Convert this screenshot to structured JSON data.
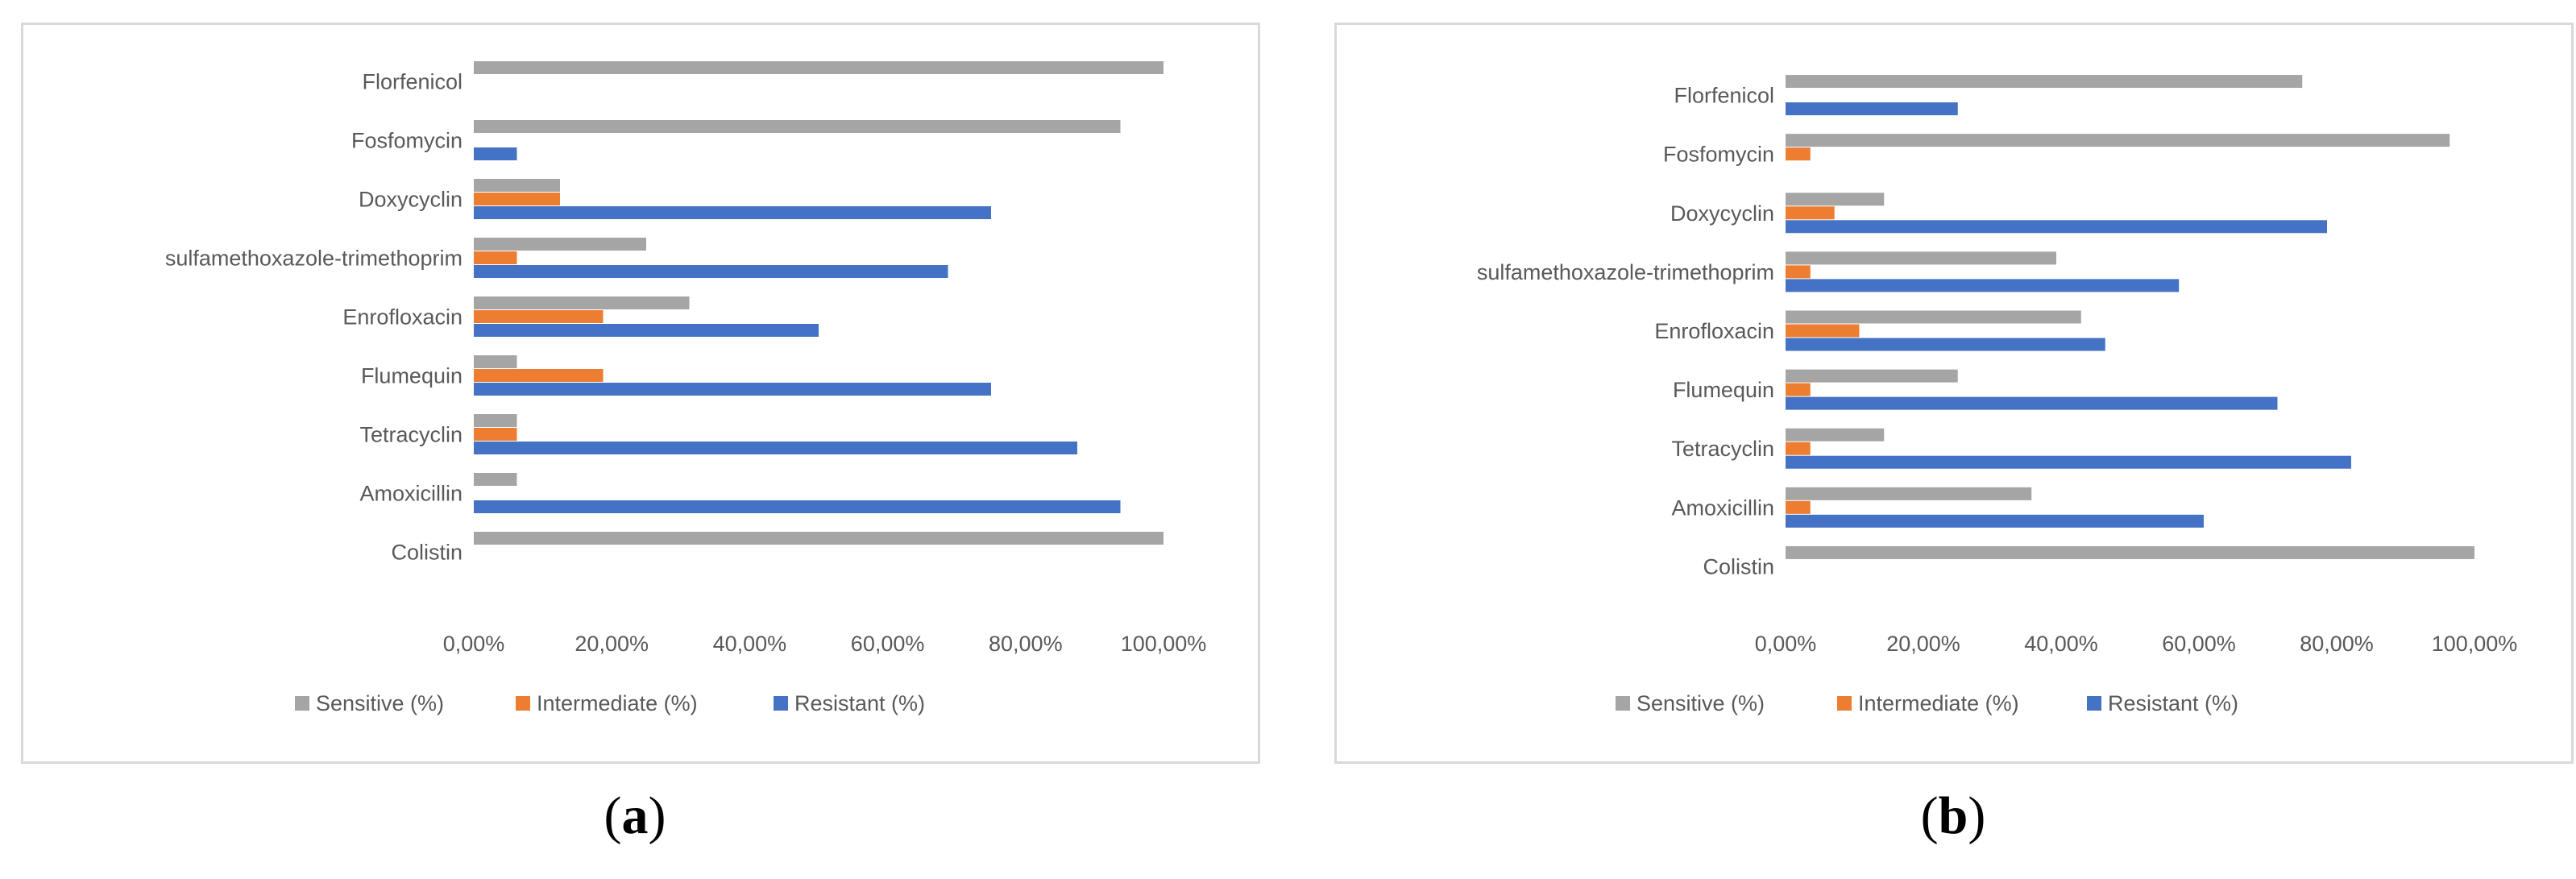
{
  "colors": {
    "sensitive": "#a5a5a5",
    "intermediate": "#ed7d31",
    "resistant": "#4472c4"
  },
  "chart_data": [
    {
      "type": "bar",
      "orientation": "horizontal",
      "panel_label": "a",
      "categories": [
        "Colistin",
        "Amoxicillin",
        "Tetracyclin",
        "Flumequin",
        "Enrofloxacin",
        "sulfamethoxazole-trimethoprim",
        "Doxycyclin",
        "Fosfomycin",
        "Florfenicol"
      ],
      "series": [
        {
          "name": "Sensitive (%)",
          "values": [
            100,
            6.25,
            6.25,
            6.25,
            31.25,
            25,
            12.5,
            93.75,
            100
          ]
        },
        {
          "name": "Intermediate (%)",
          "values": [
            0,
            0,
            6.25,
            18.75,
            18.75,
            6.25,
            12.5,
            0,
            0
          ]
        },
        {
          "name": "Resistant (%)",
          "values": [
            0,
            93.75,
            87.5,
            75,
            50,
            68.75,
            75,
            6.25,
            0
          ]
        }
      ],
      "xlim": [
        0,
        100
      ],
      "tick_labels": [
        "0,00%",
        "20,00%",
        "40,00%",
        "60,00%",
        "80,00%",
        "100,00%"
      ],
      "legend_position": "bottom",
      "grid": false
    },
    {
      "type": "bar",
      "orientation": "horizontal",
      "panel_label": "b",
      "categories": [
        "Colistin",
        "Amoxicillin",
        "Tetracyclin",
        "Flumequin",
        "Enrofloxacin",
        "sulfamethoxazole-trimethoprim",
        "Doxycyclin",
        "Fosfomycin",
        "Florfenicol"
      ],
      "series": [
        {
          "name": "Sensitive (%)",
          "values": [
            100,
            35.7,
            14.3,
            25,
            42.9,
            39.3,
            14.3,
            96.4,
            75
          ]
        },
        {
          "name": "Intermediate (%)",
          "values": [
            0,
            3.6,
            3.6,
            3.6,
            10.7,
            3.6,
            7.1,
            3.6,
            0
          ]
        },
        {
          "name": "Resistant (%)",
          "values": [
            0,
            60.7,
            82.1,
            71.4,
            46.4,
            57.1,
            78.6,
            0,
            25
          ]
        }
      ],
      "xlim": [
        0,
        100
      ],
      "tick_labels": [
        "0,00%",
        "20,00%",
        "40,00%",
        "60,00%",
        "80,00%",
        "100,00%"
      ],
      "legend_position": "bottom",
      "grid": false
    }
  ]
}
